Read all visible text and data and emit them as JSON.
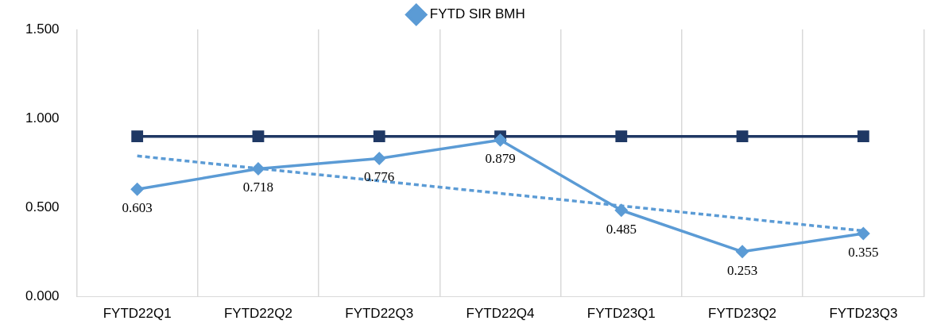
{
  "chart_data": {
    "type": "line",
    "categories": [
      "FYTD22Q1",
      "FYTD22Q2",
      "FYTD22Q3",
      "FYTD22Q4",
      "FYTD23Q1",
      "FYTD23Q2",
      "FYTD23Q3"
    ],
    "series": [
      {
        "name": "FYTD SIR BMH",
        "color": "#5b9bd5",
        "marker": "diamond",
        "values": [
          0.603,
          0.718,
          0.776,
          0.879,
          0.485,
          0.253,
          0.355
        ],
        "value_labels": [
          "0.603",
          "0.718",
          "0.776",
          "0.879",
          "0.485",
          "0.253",
          "0.355"
        ]
      },
      {
        "color": "#1f3864",
        "marker": "square",
        "values": [
          0.9,
          0.9,
          0.9,
          0.9,
          0.9,
          0.9,
          0.9
        ]
      },
      {
        "color": "#5b9bd5",
        "marker": "none",
        "line_style": "dashed",
        "values": [
          0.79,
          0.72,
          0.65,
          0.58,
          0.51,
          0.44,
          0.37
        ]
      }
    ],
    "ylim": [
      0,
      1.5
    ],
    "yticks": [
      {
        "value": 0,
        "label": "0.000"
      },
      {
        "value": 0.5,
        "label": "0.500"
      },
      {
        "value": 1,
        "label": "1.000"
      },
      {
        "value": 1.5,
        "label": "1.500"
      }
    ],
    "grid": "x",
    "legend": "top"
  }
}
